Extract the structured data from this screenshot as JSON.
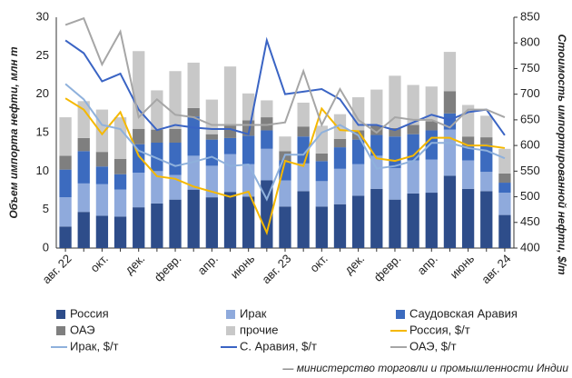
{
  "chart_data": {
    "type": "bar",
    "stacked": true,
    "ylabel": "Объем импорта нефти, млн т",
    "y2label": "Стоимость импортированной нефти, $/т",
    "source": "— министерство торговли и промышленности Индии",
    "categories": [
      "авг. 22",
      null,
      "окт.",
      null,
      "дек.",
      null,
      "февр.",
      null,
      "апр.",
      null,
      "июнь",
      null,
      "авг. 23",
      null,
      "окт.",
      null,
      "дек.",
      null,
      "февр.",
      null,
      "апр.",
      null,
      "июнь",
      null,
      "авг. 24"
    ],
    "ylim": [
      0,
      30
    ],
    "yticks": [
      0,
      5,
      10,
      15,
      20,
      25,
      30
    ],
    "y2lim": [
      400,
      850
    ],
    "y2ticks": [
      400,
      450,
      500,
      550,
      600,
      650,
      700,
      750,
      800,
      850
    ],
    "series": [
      {
        "name": "Россия",
        "type": "bar",
        "color": "#2e4d8a",
        "values": [
          2.8,
          4.7,
          4.2,
          4.1,
          5.3,
          5.8,
          6.3,
          7.6,
          6.6,
          7.3,
          6.7,
          8.8,
          5.4,
          7.4,
          5.4,
          5.7,
          6.8,
          7.7,
          6.3,
          7.1,
          7.2,
          9.4,
          7.7,
          7.4,
          4.3
        ]
      },
      {
        "name": "Ирак",
        "type": "bar",
        "color": "#8faadc",
        "values": [
          3.8,
          3.7,
          4.1,
          3.5,
          4.5,
          4.2,
          3.2,
          4.4,
          4.1,
          4.9,
          4.2,
          4.1,
          3.4,
          3.6,
          3.3,
          4.6,
          4.1,
          4.3,
          4.1,
          4.3,
          4.3,
          6.0,
          3.7,
          2.5,
          2.9
        ]
      },
      {
        "name": "Саудовская Аравия",
        "type": "bar",
        "color": "#3c6bbf",
        "values": [
          3.6,
          4.2,
          2.3,
          2.0,
          3.7,
          3.7,
          4.2,
          5.1,
          3.4,
          2.1,
          3.7,
          2.4,
          2.6,
          3.5,
          2.6,
          2.8,
          3.2,
          2.7,
          4.1,
          3.4,
          3.8,
          2.1,
          1.8,
          3.6,
          1.3
        ]
      },
      {
        "name": "ОАЭ",
        "type": "bar",
        "color": "#7f7f7f",
        "values": [
          1.8,
          1.7,
          1.9,
          2.0,
          2.0,
          1.7,
          1.8,
          1.1,
          0.7,
          1.7,
          2.0,
          1.7,
          1.2,
          1.3,
          1.0,
          1.1,
          1.2,
          1.2,
          1.1,
          1.2,
          1.2,
          2.9,
          1.3,
          0.9,
          1.2
        ]
      },
      {
        "name": "прочие",
        "type": "bar",
        "color": "#c8c8c8",
        "values": [
          5.0,
          4.8,
          5.5,
          5.4,
          10.1,
          5.1,
          7.5,
          5.9,
          4.5,
          7.6,
          3.5,
          2.2,
          1.9,
          3.1,
          3.6,
          3.2,
          4.3,
          4.7,
          6.8,
          5.2,
          4.5,
          5.1,
          4.1,
          2.8,
          3.2
        ]
      },
      {
        "name": "Россия, $/т",
        "type": "line",
        "axis": "y2",
        "color": "#f5b800",
        "values": [
          692,
          670,
          622,
          665,
          580,
          540,
          535,
          520,
          510,
          500,
          510,
          430,
          570,
          560,
          672,
          630,
          628,
          575,
          570,
          580,
          615,
          615,
          600,
          600,
          595
        ]
      },
      {
        "name": "Ирак, $/т",
        "type": "line",
        "axis": "y2",
        "color": "#8fb1dc",
        "values": [
          720,
          690,
          640,
          632,
          590,
          575,
          560,
          568,
          578,
          560,
          563,
          495,
          582,
          582,
          625,
          640,
          620,
          555,
          560,
          570,
          605,
          605,
          595,
          590,
          575
        ]
      },
      {
        "name": "С. Аравия, $/т",
        "type": "line",
        "axis": "y2",
        "color": "#3a64c4",
        "values": [
          805,
          780,
          725,
          740,
          670,
          630,
          640,
          635,
          632,
          632,
          622,
          805,
          700,
          705,
          710,
          690,
          640,
          640,
          630,
          645,
          660,
          650,
          665,
          670,
          620
        ]
      },
      {
        "name": "ОАЭ, $/т",
        "type": "line",
        "axis": "y2",
        "color": "#a6a6a6",
        "values": [
          835,
          848,
          758,
          822,
          655,
          690,
          660,
          655,
          640,
          640,
          640,
          640,
          645,
          745,
          640,
          710,
          650,
          625,
          655,
          650,
          650,
          635,
          670,
          670,
          655
        ]
      }
    ]
  }
}
